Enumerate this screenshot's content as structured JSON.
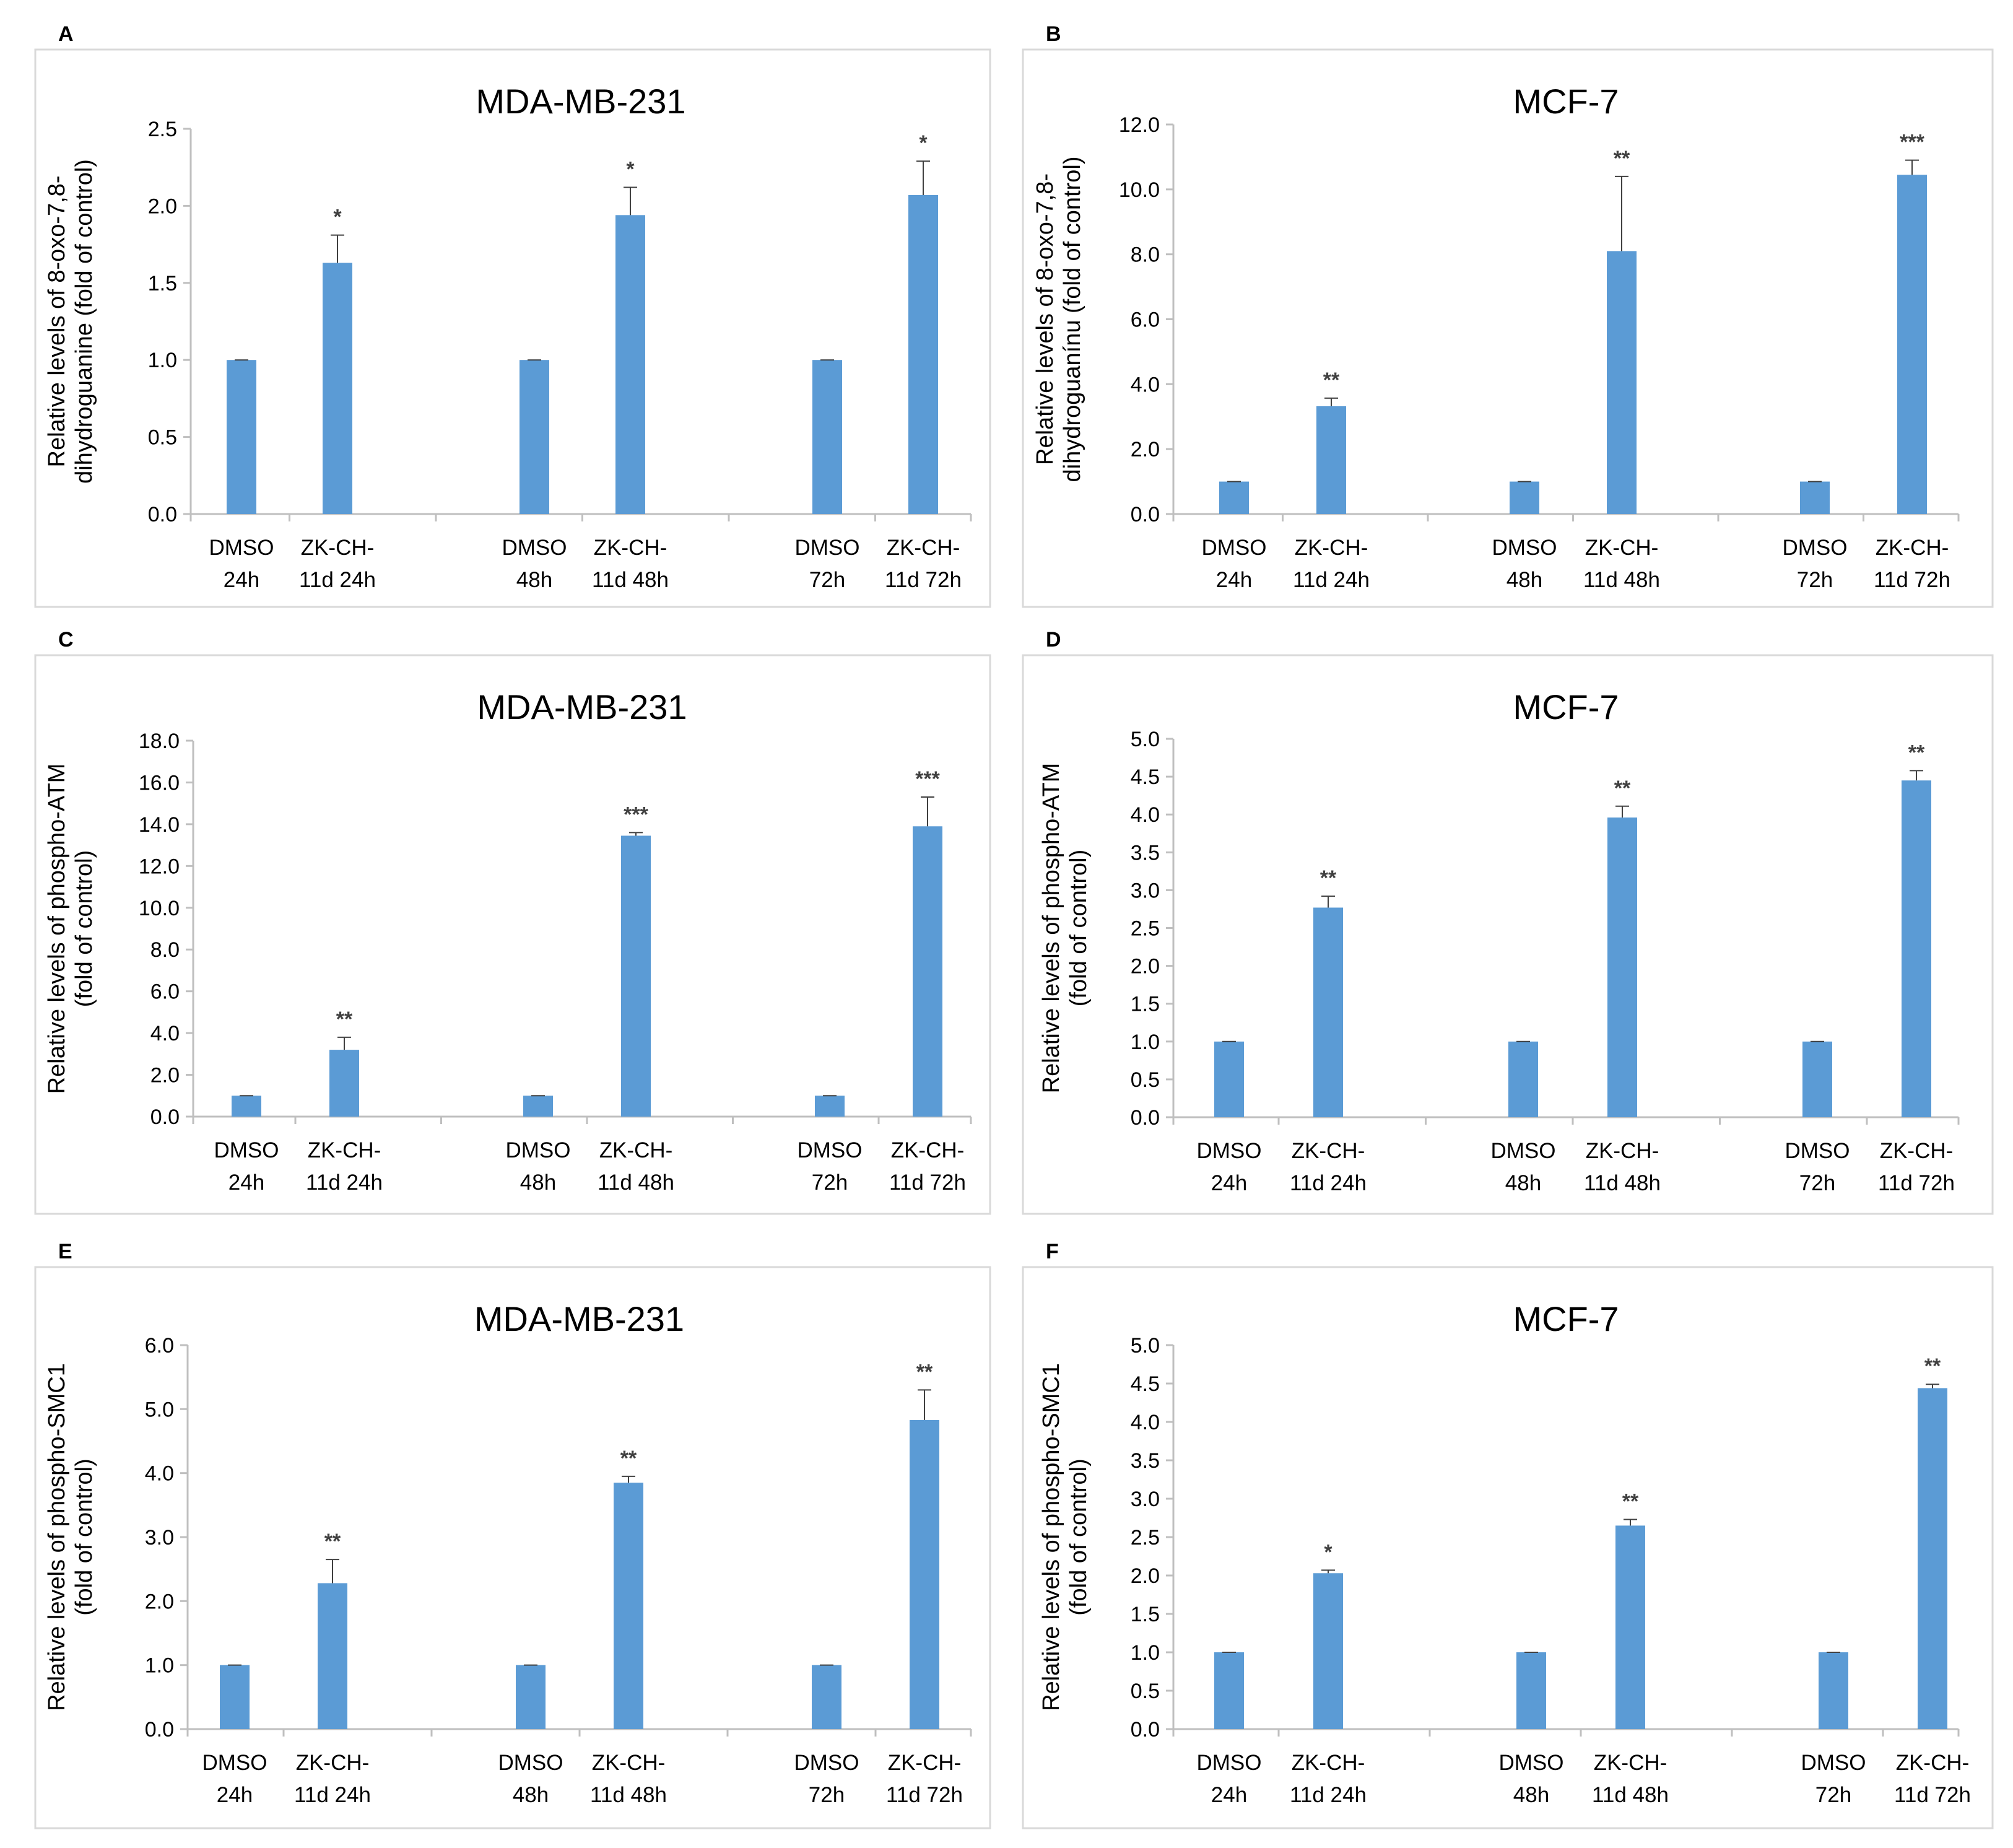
{
  "figure": {
    "bar_color": "#5b9bd5",
    "axis_color": "#bfbfbf",
    "frame_color": "#d9d9d9",
    "text_color": "#000000",
    "sig_color": "#404040"
  },
  "chart_data": [
    {
      "panel": "A",
      "type": "bar",
      "title": "MDA-MB-231",
      "ylabel": [
        "Relative levels of 8-oxo-7,8-",
        "dihydroguanine (fold of control)"
      ],
      "ylim": [
        0,
        2.5
      ],
      "ystep": 0.5,
      "tick_decimals": 1,
      "categories": [
        [
          "DMSO",
          "24h"
        ],
        [
          "ZK-CH-",
          "11d 24h"
        ],
        [
          "DMSO",
          "48h"
        ],
        [
          "ZK-CH-",
          "11d 48h"
        ],
        [
          "DMSO",
          "72h"
        ],
        [
          "ZK-CH-",
          "11d 72h"
        ]
      ],
      "values": [
        1.0,
        1.63,
        1.0,
        1.94,
        1.0,
        2.07
      ],
      "errors": [
        0.0,
        0.18,
        0.0,
        0.18,
        0.0,
        0.22
      ],
      "significance": [
        "",
        "*",
        "",
        "*",
        "",
        "*"
      ]
    },
    {
      "panel": "B",
      "type": "bar",
      "title": "MCF-7",
      "ylabel": [
        "Relative levels of 8-oxo-7,8-",
        "dihydroguanínu (fold of control)"
      ],
      "ylim": [
        0,
        12
      ],
      "ystep": 2,
      "tick_decimals": 1,
      "categories": [
        [
          "DMSO",
          "24h"
        ],
        [
          "ZK-CH-",
          "11d 24h"
        ],
        [
          "DMSO",
          "48h"
        ],
        [
          "ZK-CH-",
          "11d 48h"
        ],
        [
          "DMSO",
          "72h"
        ],
        [
          "ZK-CH-",
          "11d 72h"
        ]
      ],
      "values": [
        1.0,
        3.32,
        1.0,
        8.1,
        1.0,
        10.45
      ],
      "errors": [
        0.0,
        0.25,
        0.0,
        2.3,
        0.0,
        0.45
      ],
      "significance": [
        "",
        "**",
        "",
        "**",
        "",
        "***"
      ]
    },
    {
      "panel": "C",
      "type": "bar",
      "title": "MDA-MB-231",
      "ylabel": [
        "Relative levels of phospho-ATM",
        "(fold of control)"
      ],
      "ylim": [
        0,
        18
      ],
      "ystep": 2,
      "tick_decimals": 1,
      "categories": [
        [
          "DMSO",
          "24h"
        ],
        [
          "ZK-CH-",
          "11d 24h"
        ],
        [
          "DMSO",
          "48h"
        ],
        [
          "ZK-CH-",
          "11d 48h"
        ],
        [
          "DMSO",
          "72h"
        ],
        [
          "ZK-CH-",
          "11d 72h"
        ]
      ],
      "values": [
        1.0,
        3.2,
        1.0,
        13.45,
        1.0,
        13.9
      ],
      "errors": [
        0.0,
        0.6,
        0.0,
        0.15,
        0.0,
        1.4
      ],
      "significance": [
        "",
        "**",
        "",
        "***",
        "",
        "***"
      ]
    },
    {
      "panel": "D",
      "type": "bar",
      "title": "MCF-7",
      "ylabel": [
        "Relative levels of phospho-ATM",
        "(fold of control)"
      ],
      "ylim": [
        0,
        5
      ],
      "ystep": 0.5,
      "tick_decimals": 1,
      "categories": [
        [
          "DMSO",
          "24h"
        ],
        [
          "ZK-CH-",
          "11d 24h"
        ],
        [
          "DMSO",
          "48h"
        ],
        [
          "ZK-CH-",
          "11d 48h"
        ],
        [
          "DMSO",
          "72h"
        ],
        [
          "ZK-CH-",
          "11d 72h"
        ]
      ],
      "values": [
        1.0,
        2.77,
        1.0,
        3.96,
        1.0,
        4.45
      ],
      "errors": [
        0.0,
        0.15,
        0.0,
        0.15,
        0.0,
        0.13
      ],
      "significance": [
        "",
        "**",
        "",
        "**",
        "",
        "**"
      ]
    },
    {
      "panel": "E",
      "type": "bar",
      "title": "MDA-MB-231",
      "ylabel": [
        "Relative levels of phospho-SMC1",
        "(fold of control)"
      ],
      "ylim": [
        0,
        6
      ],
      "ystep": 1,
      "tick_decimals": 1,
      "categories": [
        [
          "DMSO",
          "24h"
        ],
        [
          "ZK-CH-",
          "11d 24h"
        ],
        [
          "DMSO",
          "48h"
        ],
        [
          "ZK-CH-",
          "11d 48h"
        ],
        [
          "DMSO",
          "72h"
        ],
        [
          "ZK-CH-",
          "11d 72h"
        ]
      ],
      "values": [
        1.0,
        2.28,
        1.0,
        3.85,
        1.0,
        4.83
      ],
      "errors": [
        0.0,
        0.37,
        0.0,
        0.1,
        0.0,
        0.47
      ],
      "significance": [
        "",
        "**",
        "",
        "**",
        "",
        "**"
      ]
    },
    {
      "panel": "F",
      "type": "bar",
      "title": "MCF-7",
      "ylabel": [
        "Relative levels of phospho-SMC1",
        "(fold of control)"
      ],
      "ylim": [
        0,
        5
      ],
      "ystep": 0.5,
      "tick_decimals": 1,
      "categories": [
        [
          "DMSO",
          "24h"
        ],
        [
          "ZK-CH-",
          "11d 24h"
        ],
        [
          "DMSO",
          "48h"
        ],
        [
          "ZK-CH-",
          "11d 48h"
        ],
        [
          "DMSO",
          "72h"
        ],
        [
          "ZK-CH-",
          "11d 72h"
        ]
      ],
      "values": [
        1.0,
        2.03,
        1.0,
        2.65,
        1.0,
        4.44
      ],
      "errors": [
        0.0,
        0.04,
        0.0,
        0.08,
        0.0,
        0.05
      ],
      "significance": [
        "",
        "*",
        "",
        "**",
        "",
        "**"
      ]
    }
  ]
}
